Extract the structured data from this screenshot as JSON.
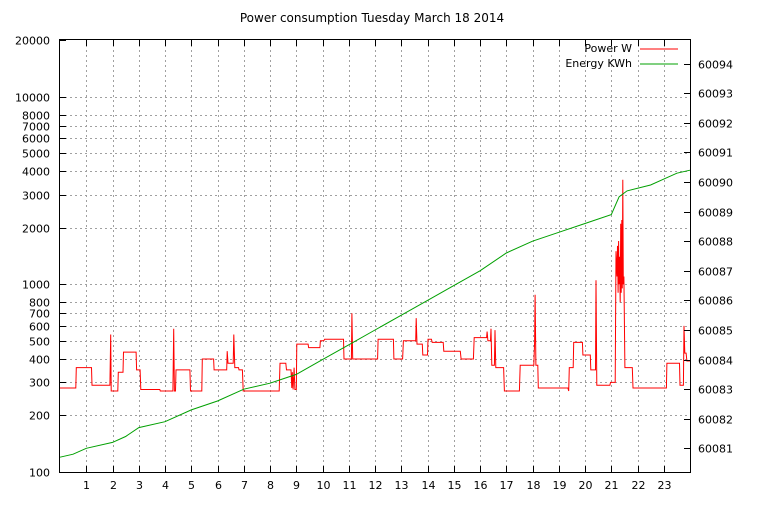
{
  "chart_data": {
    "type": "line",
    "title": "Power consumption Tuesday March 18 2014",
    "x": {
      "range": [
        0,
        24
      ],
      "ticks": [
        1,
        2,
        3,
        4,
        5,
        6,
        7,
        8,
        9,
        10,
        11,
        12,
        13,
        14,
        15,
        16,
        17,
        18,
        19,
        20,
        21,
        22,
        23
      ]
    },
    "y_left": {
      "scale": "log",
      "range": [
        100,
        20000
      ],
      "ticks": [
        100,
        200,
        300,
        400,
        500,
        600,
        700,
        800,
        1000,
        2000,
        3000,
        4000,
        5000,
        6000,
        7000,
        8000,
        10000,
        20000
      ]
    },
    "y_right": {
      "scale": "linear",
      "range": [
        60080.2,
        60094.8
      ],
      "ticks": [
        60081,
        60082,
        60083,
        60084,
        60085,
        60086,
        60087,
        60088,
        60089,
        60090,
        60091,
        60092,
        60093,
        60094
      ]
    },
    "grid": true,
    "legend_position": "top-right",
    "series": [
      {
        "name": "Power W",
        "axis": "left",
        "color": "#ff0000",
        "step": true,
        "points": [
          [
            0.0,
            280
          ],
          [
            0.6,
            280
          ],
          [
            0.62,
            360
          ],
          [
            1.2,
            360
          ],
          [
            1.22,
            290
          ],
          [
            1.9,
            290
          ],
          [
            1.93,
            540
          ],
          [
            1.95,
            270
          ],
          [
            2.2,
            270
          ],
          [
            2.22,
            340
          ],
          [
            2.4,
            340
          ],
          [
            2.42,
            435
          ],
          [
            2.9,
            435
          ],
          [
            2.92,
            350
          ],
          [
            3.05,
            350
          ],
          [
            3.08,
            275
          ],
          [
            3.8,
            275
          ],
          [
            3.82,
            270
          ],
          [
            4.3,
            270
          ],
          [
            4.33,
            580
          ],
          [
            4.36,
            270
          ],
          [
            4.4,
            270
          ],
          [
            4.42,
            350
          ],
          [
            4.95,
            350
          ],
          [
            4.97,
            270
          ],
          [
            5.4,
            270
          ],
          [
            5.42,
            400
          ],
          [
            5.85,
            400
          ],
          [
            5.87,
            350
          ],
          [
            6.35,
            350
          ],
          [
            6.37,
            440
          ],
          [
            6.4,
            380
          ],
          [
            6.6,
            380
          ],
          [
            6.62,
            540
          ],
          [
            6.66,
            360
          ],
          [
            6.8,
            360
          ],
          [
            6.82,
            350
          ],
          [
            6.95,
            350
          ],
          [
            6.98,
            270
          ],
          [
            8.35,
            270
          ],
          [
            8.38,
            380
          ],
          [
            8.6,
            380
          ],
          [
            8.63,
            350
          ],
          [
            8.8,
            350
          ],
          [
            8.83,
            280
          ],
          [
            8.85,
            340
          ],
          [
            8.88,
            275
          ],
          [
            8.92,
            360
          ],
          [
            8.95,
            275
          ],
          [
            9.0,
            275
          ],
          [
            9.02,
            480
          ],
          [
            9.45,
            480
          ],
          [
            9.47,
            460
          ],
          [
            9.9,
            460
          ],
          [
            9.92,
            500
          ],
          [
            10.05,
            500
          ],
          [
            10.08,
            510
          ],
          [
            10.8,
            510
          ],
          [
            10.82,
            400
          ],
          [
            11.1,
            400
          ],
          [
            11.12,
            700
          ],
          [
            11.15,
            400
          ],
          [
            12.1,
            400
          ],
          [
            12.12,
            510
          ],
          [
            12.7,
            510
          ],
          [
            12.72,
            400
          ],
          [
            13.05,
            400
          ],
          [
            13.08,
            500
          ],
          [
            13.55,
            500
          ],
          [
            13.57,
            660
          ],
          [
            13.6,
            480
          ],
          [
            13.8,
            480
          ],
          [
            13.82,
            420
          ],
          [
            14.0,
            420
          ],
          [
            14.02,
            510
          ],
          [
            14.15,
            510
          ],
          [
            14.18,
            490
          ],
          [
            14.6,
            490
          ],
          [
            14.62,
            440
          ],
          [
            15.25,
            440
          ],
          [
            15.28,
            400
          ],
          [
            15.75,
            400
          ],
          [
            15.78,
            520
          ],
          [
            16.25,
            520
          ],
          [
            16.27,
            560
          ],
          [
            16.3,
            500
          ],
          [
            16.4,
            500
          ],
          [
            16.42,
            580
          ],
          [
            16.45,
            370
          ],
          [
            16.55,
            370
          ],
          [
            16.57,
            570
          ],
          [
            16.6,
            360
          ],
          [
            16.9,
            360
          ],
          [
            16.93,
            270
          ],
          [
            17.5,
            270
          ],
          [
            17.53,
            370
          ],
          [
            18.05,
            370
          ],
          [
            18.08,
            490
          ],
          [
            18.1,
            880
          ],
          [
            18.13,
            370
          ],
          [
            18.2,
            370
          ],
          [
            18.22,
            280
          ],
          [
            19.35,
            280
          ],
          [
            19.38,
            270
          ],
          [
            19.4,
            360
          ],
          [
            19.55,
            360
          ],
          [
            19.57,
            490
          ],
          [
            19.9,
            490
          ],
          [
            19.92,
            420
          ],
          [
            20.2,
            420
          ],
          [
            20.22,
            350
          ],
          [
            20.4,
            350
          ],
          [
            20.42,
            1050
          ],
          [
            20.45,
            290
          ],
          [
            20.95,
            290
          ],
          [
            20.97,
            300
          ],
          [
            21.15,
            300
          ],
          [
            21.18,
            1500
          ],
          [
            21.22,
            1100
          ],
          [
            21.24,
            1600
          ],
          [
            21.26,
            900
          ],
          [
            21.28,
            1700
          ],
          [
            21.3,
            1000
          ],
          [
            21.32,
            1400
          ],
          [
            21.34,
            800
          ],
          [
            21.36,
            2100
          ],
          [
            21.38,
            900
          ],
          [
            21.4,
            2200
          ],
          [
            21.42,
            950
          ],
          [
            21.44,
            3600
          ],
          [
            21.46,
            1000
          ],
          [
            21.48,
            1100
          ],
          [
            21.52,
            360
          ],
          [
            21.8,
            360
          ],
          [
            21.83,
            280
          ],
          [
            23.1,
            280
          ],
          [
            23.12,
            380
          ],
          [
            23.6,
            380
          ],
          [
            23.62,
            290
          ],
          [
            23.75,
            290
          ],
          [
            23.77,
            600
          ],
          [
            23.8,
            430
          ],
          [
            23.85,
            430
          ],
          [
            23.88,
            390
          ],
          [
            24.0,
            390
          ]
        ]
      },
      {
        "name": "Energy KWh",
        "axis": "right",
        "color": "#00a000",
        "step": false,
        "points": [
          [
            0.0,
            60080.7
          ],
          [
            0.5,
            60080.8
          ],
          [
            1.0,
            60081.0
          ],
          [
            2.0,
            60081.2
          ],
          [
            2.5,
            60081.4
          ],
          [
            3.0,
            60081.7
          ],
          [
            4.0,
            60081.9
          ],
          [
            5.0,
            60082.3
          ],
          [
            6.0,
            60082.6
          ],
          [
            7.0,
            60083.0
          ],
          [
            8.0,
            60083.2
          ],
          [
            9.0,
            60083.5
          ],
          [
            10.0,
            60084.0
          ],
          [
            11.0,
            60084.5
          ],
          [
            12.0,
            60085.0
          ],
          [
            13.0,
            60085.5
          ],
          [
            14.0,
            60086.0
          ],
          [
            15.0,
            60086.5
          ],
          [
            16.0,
            60087.0
          ],
          [
            17.0,
            60087.6
          ],
          [
            18.0,
            60088.0
          ],
          [
            19.0,
            60088.3
          ],
          [
            20.0,
            60088.6
          ],
          [
            21.0,
            60088.9
          ],
          [
            21.3,
            60089.5
          ],
          [
            21.6,
            60089.7
          ],
          [
            22.5,
            60089.9
          ],
          [
            23.0,
            60090.1
          ],
          [
            23.5,
            60090.3
          ],
          [
            24.0,
            60090.4
          ]
        ]
      }
    ]
  }
}
